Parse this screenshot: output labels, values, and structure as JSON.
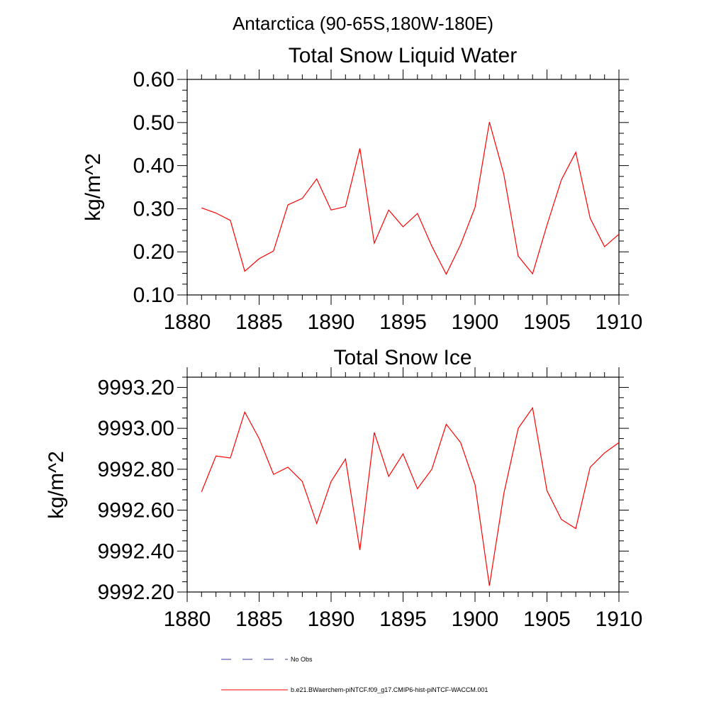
{
  "suptitle": "Antarctica (90-65S,180W-180E)",
  "colors": {
    "model": "#ff0000",
    "obs": "#3a3aa8",
    "axis": "#000000"
  },
  "legend": {
    "obs_label": "No Obs",
    "model_label": "b.e21.BWaerchem-piNTCF.f09_g17.CMIP6-hist-piNTCF-WACCM.001"
  },
  "chart_data": [
    {
      "type": "line",
      "title": "Total Snow Liquid Water",
      "ylabel": "kg/m^2",
      "xlabel": "",
      "xlim": [
        1880,
        1910
      ],
      "ylim": [
        0.1,
        0.6
      ],
      "x_ticks": [
        "1880",
        "1885",
        "1890",
        "1895",
        "1900",
        "1905",
        "1910"
      ],
      "y_ticks": [
        "0.10",
        "0.20",
        "0.30",
        "0.40",
        "0.50",
        "0.60"
      ],
      "grid": false,
      "series": [
        {
          "name": "b.e21.BWaerchem-piNTCF.f09_g17.CMIP6-hist-piNTCF-WACCM.001",
          "x": [
            1881,
            1882,
            1883,
            1884,
            1885,
            1886,
            1887,
            1888,
            1889,
            1890,
            1891,
            1892,
            1893,
            1894,
            1895,
            1896,
            1897,
            1898,
            1899,
            1900,
            1901,
            1902,
            1903,
            1904,
            1905,
            1906,
            1907,
            1908,
            1909,
            1910
          ],
          "y": [
            0.302,
            0.29,
            0.273,
            0.155,
            0.184,
            0.202,
            0.309,
            0.324,
            0.369,
            0.297,
            0.305,
            0.44,
            0.22,
            0.297,
            0.258,
            0.289,
            0.213,
            0.148,
            0.217,
            0.303,
            0.501,
            0.38,
            0.19,
            0.149,
            0.262,
            0.367,
            0.431,
            0.278,
            0.212,
            0.241
          ]
        }
      ]
    },
    {
      "type": "line",
      "title": "Total Snow Ice",
      "ylabel": "kg/m^2",
      "xlabel": "",
      "xlim": [
        1880,
        1910
      ],
      "ylim": [
        9992.2,
        9993.25
      ],
      "x_ticks": [
        "1880",
        "1885",
        "1890",
        "1895",
        "1900",
        "1905",
        "1910"
      ],
      "y_ticks": [
        "9992.20",
        "9992.40",
        "9992.60",
        "9992.80",
        "9993.00",
        "9993.20"
      ],
      "grid": false,
      "series": [
        {
          "name": "b.e21.BWaerchem-piNTCF.f09_g17.CMIP6-hist-piNTCF-WACCM.001",
          "x": [
            1881,
            1882,
            1883,
            1884,
            1885,
            1886,
            1887,
            1888,
            1889,
            1890,
            1891,
            1892,
            1893,
            1894,
            1895,
            1896,
            1897,
            1898,
            1899,
            1900,
            1901,
            1902,
            1903,
            1904,
            1905,
            1906,
            1907,
            1908,
            1909,
            1910
          ],
          "y": [
            9992.69,
            9992.865,
            9992.855,
            9993.08,
            9992.95,
            9992.775,
            9992.81,
            9992.74,
            9992.535,
            9992.74,
            9992.85,
            9992.405,
            9992.98,
            9992.765,
            9992.875,
            9992.705,
            9992.8,
            9993.02,
            9992.93,
            9992.725,
            9992.23,
            9992.68,
            9993.0,
            9993.1,
            9992.695,
            9992.555,
            9992.51,
            9992.81,
            9992.88,
            9992.93
          ]
        }
      ]
    }
  ]
}
